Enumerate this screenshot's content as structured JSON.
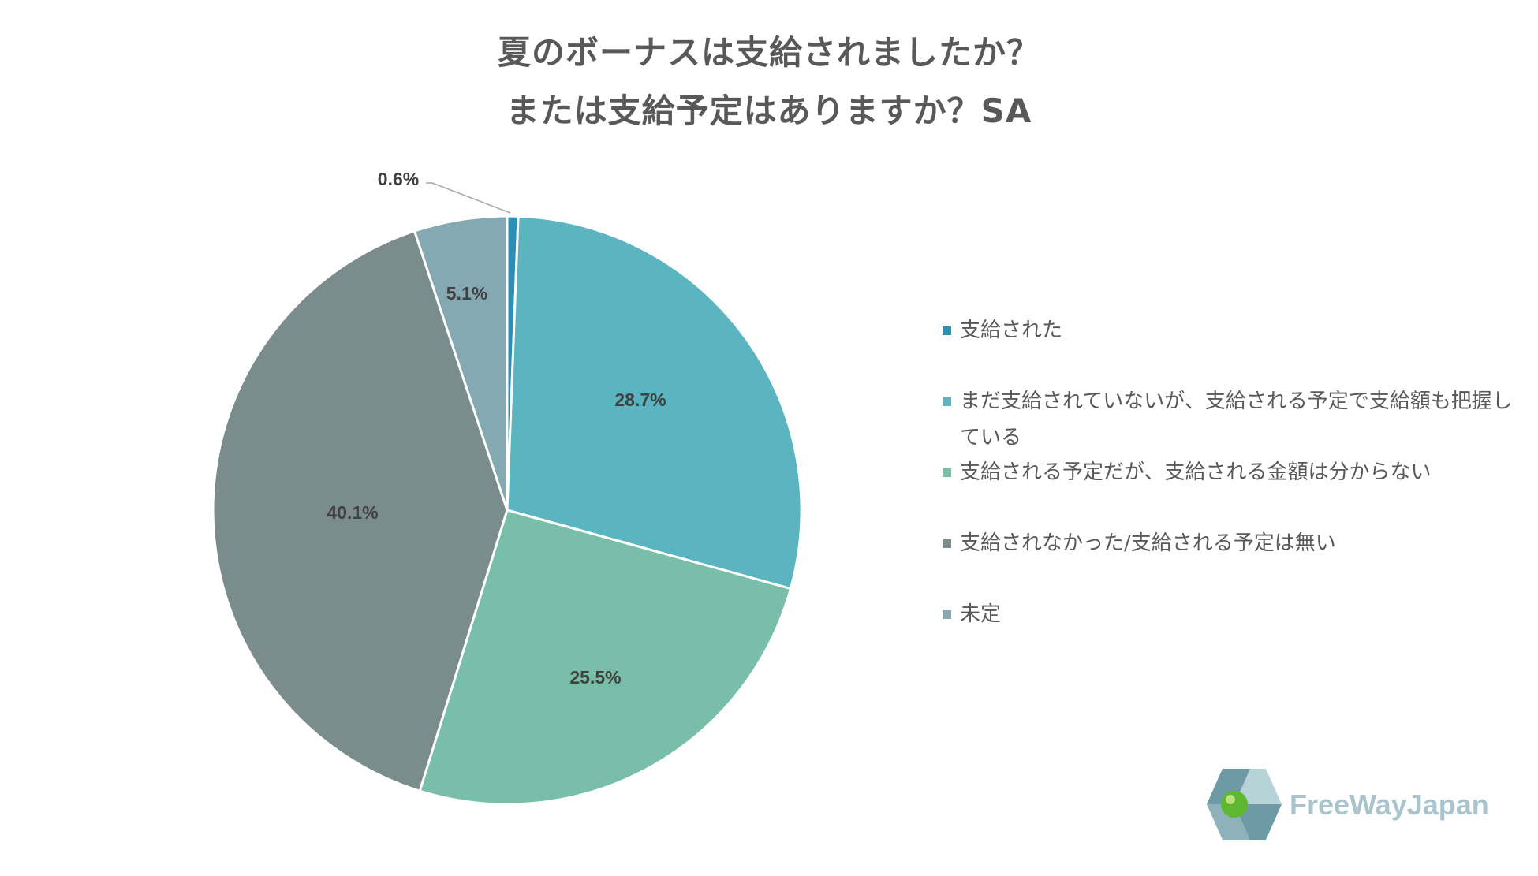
{
  "title": {
    "line1": "夏のボーナスは支給されましたか？",
    "line2": "または支給予定はありますか？SA"
  },
  "chart_data": {
    "type": "pie",
    "start_angle_deg": 0,
    "direction": "clockwise",
    "slices": [
      {
        "name": "支給された",
        "value": 0.6,
        "label": "0.6%",
        "color": "#2e8fb5"
      },
      {
        "name": "まだ支給されていないが、支給される予定で支給額も把握している",
        "value": 28.7,
        "label": "28.7%",
        "color": "#5ab5c1"
      },
      {
        "name": "支給される予定だが、支給される金額は分からない",
        "value": 25.5,
        "label": "25.5%",
        "color": "#79bea8"
      },
      {
        "name": "支給されなかった/支給される予定は無い",
        "value": 40.1,
        "label": "40.1%",
        "color": "#7a8c8b"
      },
      {
        "name": "未定",
        "value": 5.1,
        "label": "5.1%",
        "color": "#84a9b2"
      }
    ],
    "legend_position": "right"
  },
  "logo": {
    "text": "FreeWayJapan",
    "colors": {
      "dark": "#6e9aa6",
      "light": "#b7d3d8",
      "sphere": "#5db82f"
    }
  }
}
